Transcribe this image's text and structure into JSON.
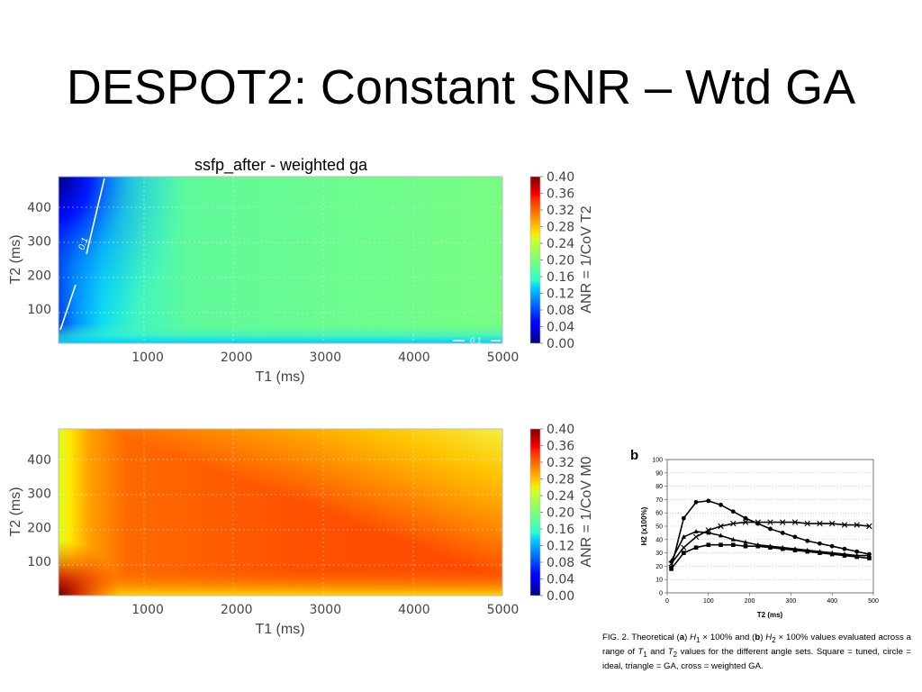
{
  "slide": {
    "title": "DESPOT2: Constant SNR – Wtd GA"
  },
  "chart_data": [
    {
      "type": "heatmap",
      "title": "ssfp_after - weighted ga",
      "xlabel": "T1 (ms)",
      "ylabel": "T2 (ms)",
      "xticks": [
        1000,
        2000,
        3000,
        4000,
        5000
      ],
      "yticks": [
        100,
        200,
        300,
        400
      ],
      "xlim": [
        0,
        5000
      ],
      "ylim": [
        0,
        490
      ],
      "colorbar": {
        "label": "ANR = 1/CoV T2",
        "range": [
          0.0,
          0.4
        ],
        "ticks": [
          "0.40",
          "0.36",
          "0.32",
          "0.28",
          "0.24",
          "0.20",
          "0.16",
          "0.12",
          "0.08",
          "0.04",
          "0.00"
        ]
      },
      "contours": [
        {
          "label": "0.1"
        },
        {
          "label": "0.1"
        }
      ],
      "grid": true
    },
    {
      "type": "heatmap",
      "title": "",
      "xlabel": "T1 (ms)",
      "ylabel": "T2 (ms)",
      "xticks": [
        1000,
        2000,
        3000,
        4000,
        5000
      ],
      "yticks": [
        100,
        200,
        300,
        400
      ],
      "xlim": [
        0,
        5000
      ],
      "ylim": [
        0,
        490
      ],
      "colorbar": {
        "label": "ANR = 1/CoV M0",
        "range": [
          0.0,
          0.4
        ],
        "ticks": [
          "0.40",
          "0.36",
          "0.32",
          "0.28",
          "0.24",
          "0.20",
          "0.16",
          "0.12",
          "0.08",
          "0.04",
          "0.00"
        ]
      },
      "grid": true
    },
    {
      "type": "line",
      "panel_label": "b",
      "xlabel": "T2 (ms)",
      "ylabel": "H2 (x100%)",
      "xlim": [
        0,
        500
      ],
      "ylim": [
        0,
        100
      ],
      "xticks": [
        0,
        100,
        200,
        300,
        400,
        500
      ],
      "yticks": [
        0,
        10,
        20,
        30,
        40,
        50,
        60,
        70,
        80,
        90,
        100
      ],
      "x": [
        10,
        40,
        70,
        100,
        130,
        160,
        190,
        220,
        250,
        280,
        310,
        340,
        370,
        400,
        430,
        460,
        490
      ],
      "series": [
        {
          "marker": "square",
          "values": [
            18,
            30,
            34,
            36,
            36,
            36,
            35,
            35,
            34,
            33,
            32,
            31,
            30,
            29,
            28,
            27,
            26
          ]
        },
        {
          "marker": "circle",
          "values": [
            19,
            56,
            68,
            69,
            66,
            61,
            56,
            52,
            48,
            45,
            42,
            39,
            37,
            35,
            33,
            31,
            29
          ]
        },
        {
          "marker": "triangle",
          "values": [
            24,
            42,
            46,
            45,
            43,
            40,
            38,
            36,
            35,
            34,
            33,
            32,
            31,
            30,
            29,
            28,
            28
          ]
        },
        {
          "marker": "cross",
          "values": [
            22,
            34,
            42,
            47,
            50,
            52,
            53,
            53,
            53,
            53,
            53,
            52,
            52,
            52,
            51,
            51,
            50
          ]
        }
      ]
    }
  ],
  "figure_caption": {
    "p1": "FIG. 2. Theoretical (",
    "a": "a",
    "p2": ") ",
    "h1": "H",
    "h1sub": "1",
    "p3": " × 100% and (",
    "b": "b",
    "p4": ") ",
    "h2": "H",
    "h2sub": "2",
    "p5": " × 100% values evaluated across a range of ",
    "t1": "T",
    "t1sub": "1",
    "p6": " and ",
    "t2": "T",
    "t2sub": "2",
    "p7": " values for the different angle sets. Square = tuned, circle = ideal, triangle = GA, cross = weighted GA."
  }
}
